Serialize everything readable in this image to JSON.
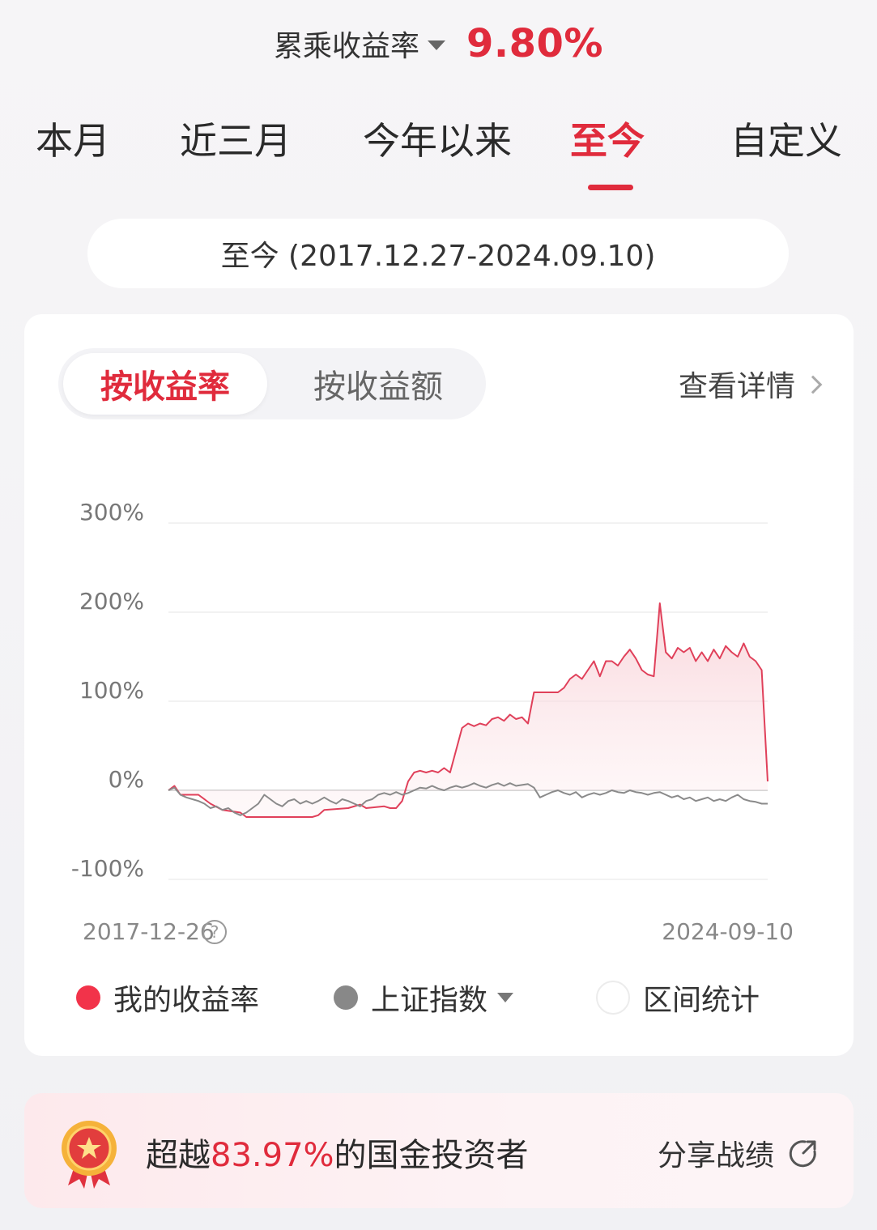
{
  "header": {
    "metric_label": "累乘收益率",
    "metric_value": "9.80%"
  },
  "tabs": [
    {
      "label": "本月",
      "active": false
    },
    {
      "label": "近三月",
      "active": false
    },
    {
      "label": "今年以来",
      "active": false
    },
    {
      "label": "至今",
      "active": true
    },
    {
      "label": "自定义",
      "active": false
    }
  ],
  "range_label": "至今 (2017.12.27-2024.09.10)",
  "card": {
    "toggle_on": "按收益率",
    "toggle_off": "按收益额",
    "details_label": "查看详情",
    "help_symbol": "?"
  },
  "legend": {
    "mine": "我的收益率",
    "index": "上证指数",
    "stats": "区间统计"
  },
  "banner": {
    "prefix": "超越",
    "percent": "83.97%",
    "suffix": "的国金投资者",
    "share_label": "分享战绩"
  },
  "colors": {
    "accent": "#e02b3c",
    "mine_line": "#e0405a",
    "index_line": "#8a8a8a"
  },
  "chart_data": {
    "type": "line",
    "title": "",
    "xlabel": "",
    "ylabel": "",
    "ylim": [
      -100,
      300
    ],
    "yticks": [
      -100,
      0,
      100,
      200,
      300
    ],
    "ytick_labels": [
      "-100%",
      "0%",
      "100%",
      "200%",
      "300%"
    ],
    "x_start_label": "2017-12-26",
    "x_end_label": "2024-09-10",
    "x_index_range": [
      0,
      100
    ],
    "series": [
      {
        "name": "我的收益率",
        "color": "#e0405a",
        "fill": true,
        "points": [
          [
            0,
            0
          ],
          [
            1,
            5
          ],
          [
            2,
            -5
          ],
          [
            5,
            -5
          ],
          [
            7,
            -15
          ],
          [
            9,
            -22
          ],
          [
            12,
            -25
          ],
          [
            13,
            -30
          ],
          [
            18,
            -30
          ],
          [
            20,
            -30
          ],
          [
            24,
            -30
          ],
          [
            25,
            -28
          ],
          [
            26,
            -22
          ],
          [
            30,
            -20
          ],
          [
            32,
            -16
          ],
          [
            33,
            -20
          ],
          [
            36,
            -18
          ],
          [
            37,
            -20
          ],
          [
            38,
            -20
          ],
          [
            39,
            -12
          ],
          [
            40,
            10
          ],
          [
            41,
            20
          ],
          [
            42,
            22
          ],
          [
            43,
            20
          ],
          [
            44,
            22
          ],
          [
            45,
            20
          ],
          [
            46,
            25
          ],
          [
            47,
            20
          ],
          [
            48,
            45
          ],
          [
            49,
            70
          ],
          [
            50,
            75
          ],
          [
            51,
            72
          ],
          [
            52,
            75
          ],
          [
            53,
            73
          ],
          [
            54,
            80
          ],
          [
            55,
            82
          ],
          [
            56,
            78
          ],
          [
            57,
            85
          ],
          [
            58,
            80
          ],
          [
            59,
            82
          ],
          [
            60,
            75
          ],
          [
            61,
            110
          ],
          [
            62,
            110
          ],
          [
            63,
            110
          ],
          [
            64,
            110
          ],
          [
            65,
            110
          ],
          [
            66,
            115
          ],
          [
            67,
            125
          ],
          [
            68,
            130
          ],
          [
            69,
            125
          ],
          [
            70,
            135
          ],
          [
            71,
            145
          ],
          [
            72,
            128
          ],
          [
            73,
            145
          ],
          [
            74,
            145
          ],
          [
            75,
            140
          ],
          [
            76,
            150
          ],
          [
            77,
            158
          ],
          [
            78,
            148
          ],
          [
            79,
            135
          ],
          [
            80,
            130
          ],
          [
            81,
            128
          ],
          [
            82,
            210
          ],
          [
            83,
            155
          ],
          [
            84,
            148
          ],
          [
            85,
            160
          ],
          [
            86,
            155
          ],
          [
            87,
            160
          ],
          [
            88,
            145
          ],
          [
            89,
            155
          ],
          [
            90,
            145
          ],
          [
            91,
            158
          ],
          [
            92,
            148
          ],
          [
            93,
            162
          ],
          [
            94,
            155
          ],
          [
            95,
            150
          ],
          [
            96,
            165
          ],
          [
            97,
            150
          ],
          [
            98,
            145
          ],
          [
            99,
            135
          ],
          [
            100,
            10
          ]
        ]
      },
      {
        "name": "上证指数",
        "color": "#8a8a8a",
        "fill": false,
        "points": [
          [
            0,
            0
          ],
          [
            1,
            3
          ],
          [
            2,
            -5
          ],
          [
            3,
            -8
          ],
          [
            4,
            -10
          ],
          [
            5,
            -12
          ],
          [
            6,
            -15
          ],
          [
            7,
            -20
          ],
          [
            8,
            -18
          ],
          [
            9,
            -22
          ],
          [
            10,
            -20
          ],
          [
            11,
            -25
          ],
          [
            12,
            -28
          ],
          [
            13,
            -25
          ],
          [
            14,
            -20
          ],
          [
            15,
            -15
          ],
          [
            16,
            -5
          ],
          [
            17,
            -10
          ],
          [
            18,
            -15
          ],
          [
            19,
            -18
          ],
          [
            20,
            -12
          ],
          [
            21,
            -10
          ],
          [
            22,
            -15
          ],
          [
            23,
            -12
          ],
          [
            24,
            -15
          ],
          [
            25,
            -12
          ],
          [
            26,
            -8
          ],
          [
            27,
            -12
          ],
          [
            28,
            -15
          ],
          [
            29,
            -10
          ],
          [
            30,
            -12
          ],
          [
            31,
            -15
          ],
          [
            32,
            -18
          ],
          [
            33,
            -12
          ],
          [
            34,
            -10
          ],
          [
            35,
            -5
          ],
          [
            36,
            -3
          ],
          [
            37,
            -5
          ],
          [
            38,
            -2
          ],
          [
            39,
            -5
          ],
          [
            40,
            -3
          ],
          [
            41,
            0
          ],
          [
            42,
            3
          ],
          [
            43,
            2
          ],
          [
            44,
            5
          ],
          [
            45,
            2
          ],
          [
            46,
            0
          ],
          [
            47,
            3
          ],
          [
            48,
            5
          ],
          [
            49,
            3
          ],
          [
            50,
            5
          ],
          [
            51,
            8
          ],
          [
            52,
            5
          ],
          [
            53,
            3
          ],
          [
            54,
            6
          ],
          [
            55,
            8
          ],
          [
            56,
            5
          ],
          [
            57,
            8
          ],
          [
            58,
            5
          ],
          [
            59,
            6
          ],
          [
            60,
            7
          ],
          [
            61,
            3
          ],
          [
            62,
            -8
          ],
          [
            63,
            -5
          ],
          [
            64,
            -2
          ],
          [
            65,
            0
          ],
          [
            66,
            -3
          ],
          [
            67,
            -5
          ],
          [
            68,
            -2
          ],
          [
            69,
            -8
          ],
          [
            70,
            -5
          ],
          [
            71,
            -3
          ],
          [
            72,
            -5
          ],
          [
            73,
            -3
          ],
          [
            74,
            0
          ],
          [
            75,
            -2
          ],
          [
            76,
            -3
          ],
          [
            77,
            0
          ],
          [
            78,
            -2
          ],
          [
            79,
            -3
          ],
          [
            80,
            -5
          ],
          [
            81,
            -3
          ],
          [
            82,
            -2
          ],
          [
            83,
            -5
          ],
          [
            84,
            -8
          ],
          [
            85,
            -6
          ],
          [
            86,
            -10
          ],
          [
            87,
            -8
          ],
          [
            88,
            -12
          ],
          [
            89,
            -10
          ],
          [
            90,
            -8
          ],
          [
            91,
            -12
          ],
          [
            92,
            -10
          ],
          [
            93,
            -12
          ],
          [
            94,
            -8
          ],
          [
            95,
            -5
          ],
          [
            96,
            -10
          ],
          [
            97,
            -12
          ],
          [
            98,
            -13
          ],
          [
            99,
            -15
          ],
          [
            100,
            -15
          ]
        ]
      }
    ]
  }
}
